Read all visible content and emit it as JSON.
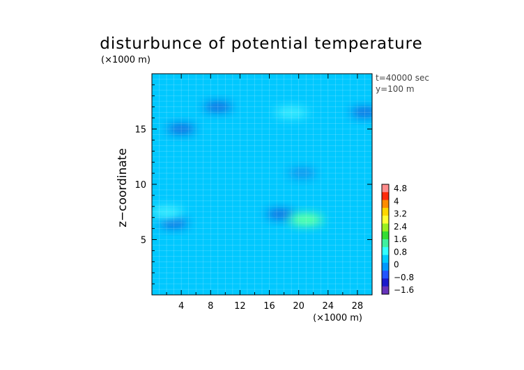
{
  "chart_data": {
    "type": "heatmap",
    "title": "disturbunce of potential temperature",
    "scale_label_top": "(×1000 m)",
    "ylabel": "z−coordinate",
    "xunit_label": "(×1000 m)",
    "annotations": [
      "t=40000 sec",
      "y=100 m"
    ],
    "x_ticks": [
      4,
      8,
      12,
      16,
      20,
      24,
      28
    ],
    "y_ticks": [
      5,
      10,
      15
    ],
    "xlim": [
      0,
      30
    ],
    "ylim": [
      0,
      20
    ],
    "grid": true,
    "legend_position": "right",
    "colorbar": {
      "labels": [
        "4.8",
        "4",
        "3.2",
        "2.4",
        "1.6",
        "0.8",
        "0",
        "−0.8",
        "−1.6"
      ],
      "colors": [
        "#ff8c8c",
        "#ff2a0a",
        "#ff8c00",
        "#ffd700",
        "#ffff33",
        "#9aee20",
        "#33dd33",
        "#40f0a0",
        "#33ffff",
        "#00ccff",
        "#0099ff",
        "#2255ff",
        "#1a1acc",
        "#6633bb"
      ]
    },
    "field": {
      "background_value": 0,
      "background_color": "#00c8ff",
      "features": [
        {
          "x": 9,
          "y": 17,
          "value": -0.8
        },
        {
          "x": 4,
          "y": 15,
          "value": -0.8
        },
        {
          "x": 3,
          "y": 6.5,
          "value": -0.8
        },
        {
          "x": 17.5,
          "y": 7.3,
          "value": -0.8
        },
        {
          "x": 20.5,
          "y": 11,
          "value": -0.4
        },
        {
          "x": 21,
          "y": 6.8,
          "value": 0.8
        },
        {
          "x": 19,
          "y": 16.5,
          "value": 0.4
        },
        {
          "x": 2,
          "y": 7.5,
          "value": 0.4
        },
        {
          "x": 29,
          "y": 16.5,
          "value": -0.8
        }
      ]
    }
  }
}
